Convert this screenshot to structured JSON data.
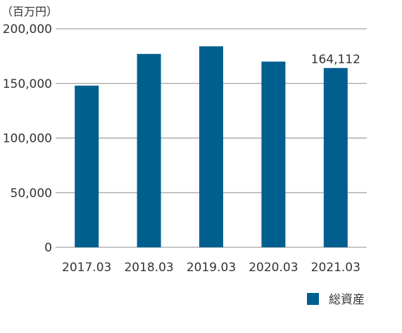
{
  "unit_label": "（百万円）",
  "chart_data": {
    "type": "bar",
    "categories": [
      "2017.03",
      "2018.03",
      "2019.03",
      "2020.03",
      "2021.03"
    ],
    "series": [
      {
        "name": "総資産",
        "values": [
          148000,
          177000,
          184000,
          170000,
          164112
        ],
        "color": "#005f8f"
      }
    ],
    "ylim": [
      0,
      200000
    ],
    "yticks": [
      "0",
      "50,000",
      "100,000",
      "150,000",
      "200,000"
    ],
    "ytick_values": [
      0,
      50000,
      100000,
      150000,
      200000
    ],
    "data_labels": [
      null,
      null,
      null,
      null,
      "164,112"
    ],
    "grid": true,
    "legend_position": "bottom-right",
    "xlabel": "",
    "ylabel": ""
  }
}
